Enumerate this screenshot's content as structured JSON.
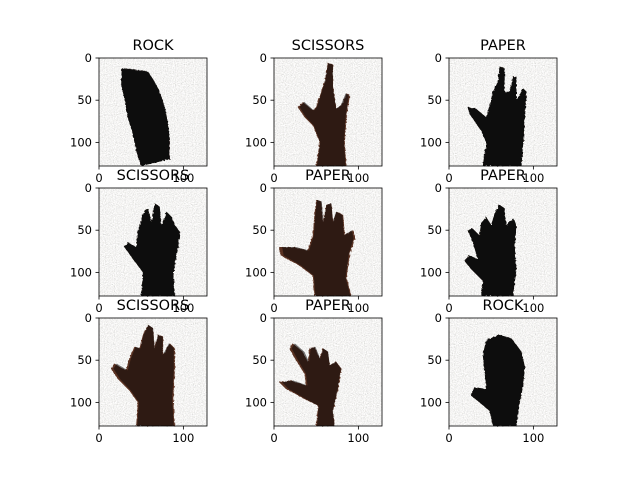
{
  "figure": {
    "background": "#ffffff"
  },
  "chart_data": {
    "type": "image-grid",
    "rows": 3,
    "cols": 3,
    "image_shape": [
      128,
      128
    ],
    "xlim": [
      0,
      128
    ],
    "ylim": [
      128,
      0
    ],
    "xticks": [
      0,
      100
    ],
    "yticks": [
      0,
      50,
      100
    ],
    "panels": [
      {
        "title": "ROCK",
        "pose": "rock"
      },
      {
        "title": "SCISSORS",
        "pose": "scissors"
      },
      {
        "title": "PAPER",
        "pose": "paper-a"
      },
      {
        "title": "SCISSORS",
        "pose": "paper-b"
      },
      {
        "title": "PAPER",
        "pose": "paper-c"
      },
      {
        "title": "PAPER",
        "pose": "paper-d"
      },
      {
        "title": "SCISSORS",
        "pose": "paper-e"
      },
      {
        "title": "PAPER",
        "pose": "paper-f"
      },
      {
        "title": "ROCK",
        "pose": "rock-b"
      }
    ],
    "colors": {
      "background_noise": "#8a8f88",
      "hand": "#0b0807",
      "hand_warm": "#5a3020",
      "text": "#000000",
      "axis": "#000000"
    }
  }
}
